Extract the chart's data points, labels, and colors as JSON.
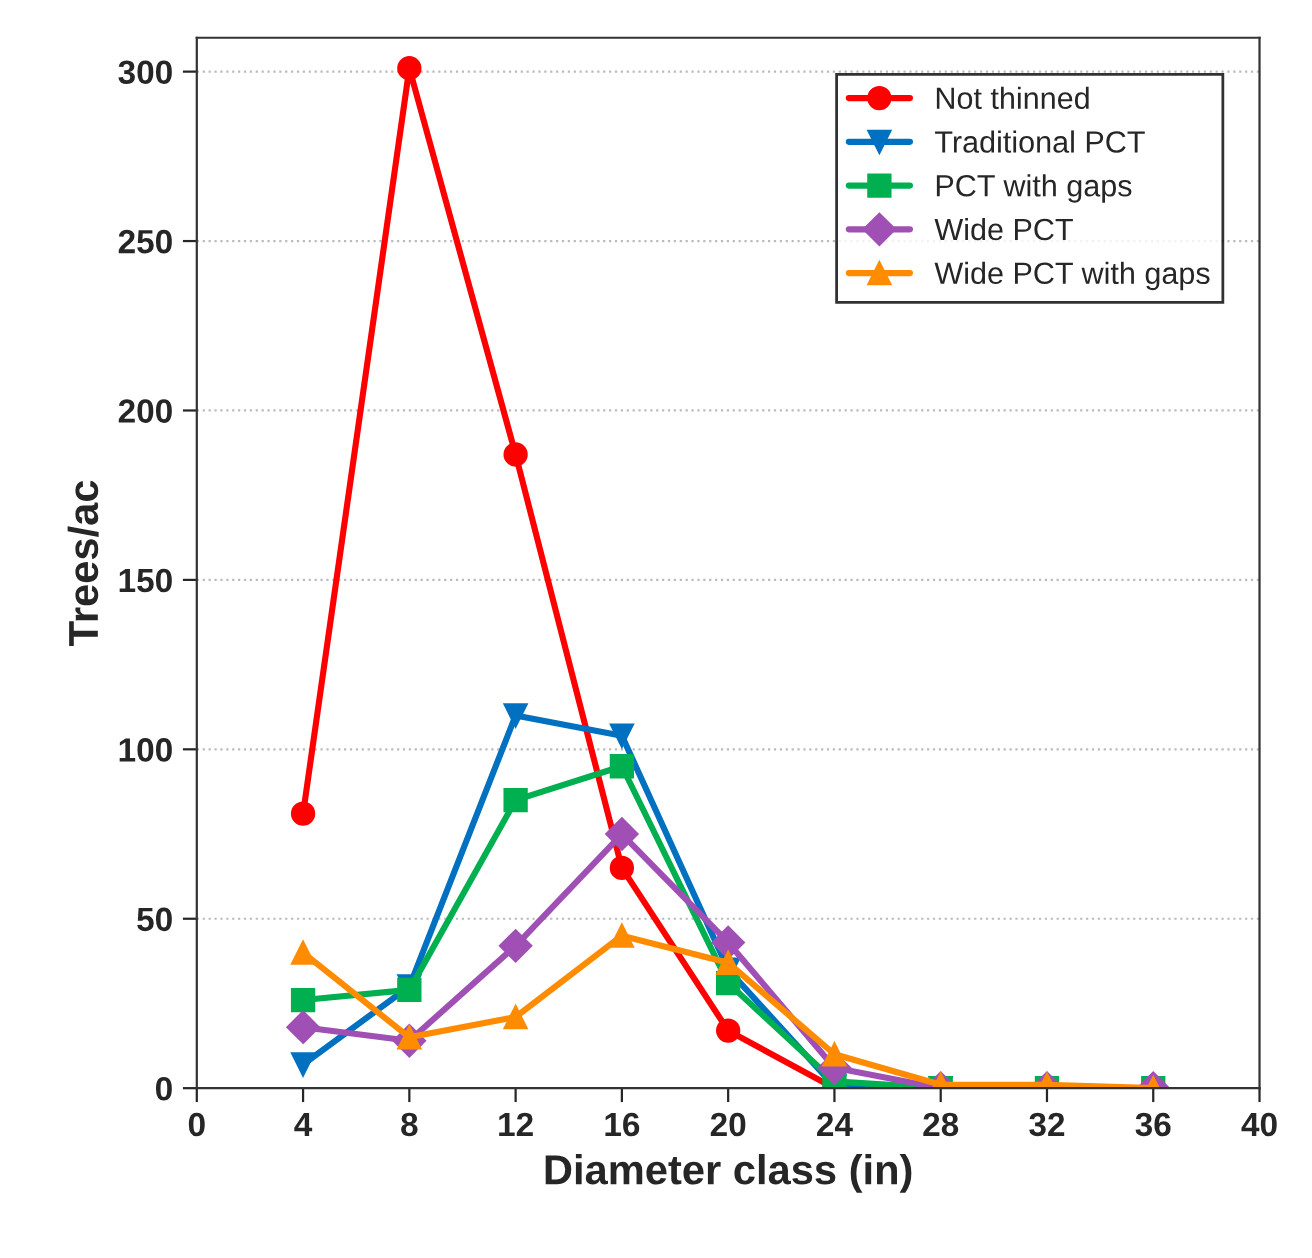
{
  "chart_data": {
    "type": "line",
    "xlabel": "Diameter class (in)",
    "ylabel": "Trees/ac",
    "x": [
      4,
      8,
      12,
      16,
      20,
      24,
      28,
      32,
      36
    ],
    "xlim": [
      0,
      40
    ],
    "xticks": [
      0,
      4,
      8,
      12,
      16,
      20,
      24,
      28,
      32,
      36,
      40
    ],
    "ylim": [
      0,
      310
    ],
    "yticks": [
      0,
      50,
      100,
      150,
      200,
      250,
      300
    ],
    "grid": "y",
    "legend": "top right",
    "line_style": "solid",
    "series": [
      {
        "name": "Not thinned",
        "color": "#ff0000",
        "marker": "circle",
        "values": [
          81,
          301,
          187,
          65,
          17,
          0,
          0,
          null,
          null
        ]
      },
      {
        "name": "Traditional PCT",
        "color": "#0070c0",
        "marker": "triangle_down",
        "values": [
          7,
          30,
          110,
          104,
          35,
          0.5,
          0,
          null,
          null
        ]
      },
      {
        "name": "PCT with gaps",
        "color": "#00b050",
        "marker": "square",
        "values": [
          26,
          29,
          85,
          95,
          31,
          2,
          0,
          0,
          0
        ]
      },
      {
        "name": "Wide PCT",
        "color": "#a050b4",
        "marker": "diamond",
        "values": [
          18,
          14,
          42,
          75,
          43,
          6,
          0,
          0,
          0
        ]
      },
      {
        "name": "Wide PCT with gaps",
        "color": "#ff8c00",
        "marker": "triangle",
        "values": [
          40,
          15,
          21,
          45,
          37,
          10,
          1,
          1,
          0
        ]
      }
    ]
  }
}
